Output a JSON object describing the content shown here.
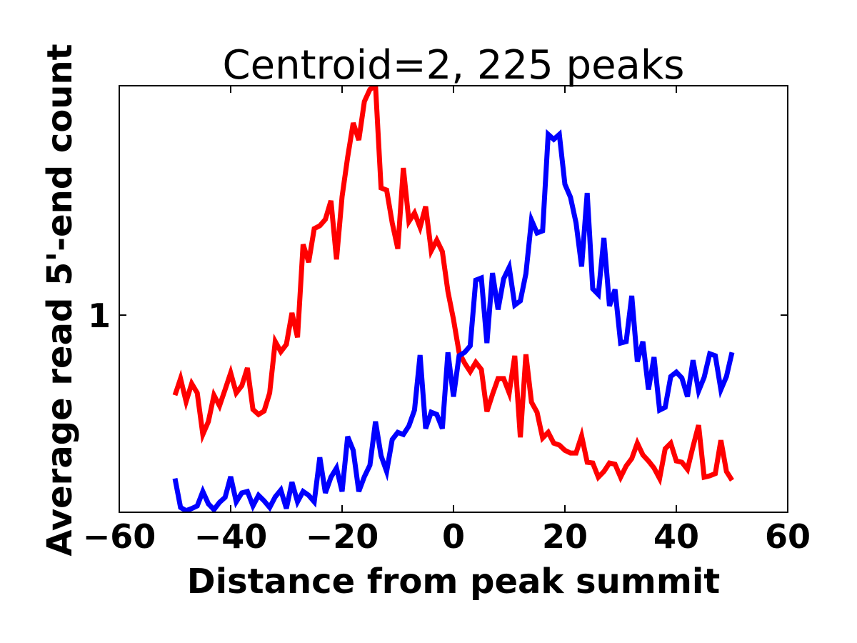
{
  "chart_data": {
    "type": "line",
    "title": "Centroid=2, 225 peaks",
    "xlabel": "Distance from peak summit",
    "ylabel": "Average read 5'-end count",
    "xlim": [
      -60,
      60
    ],
    "ylim": [
      0.345,
      3.45
    ],
    "yscale": "log",
    "xticks": [
      -60,
      -40,
      -20,
      0,
      20,
      40,
      60
    ],
    "xtick_labels": [
      "−60",
      "−40",
      "−20",
      "0",
      "20",
      "40",
      "60"
    ],
    "yticks": [
      1
    ],
    "ytick_labels": [
      "1"
    ],
    "grid": false,
    "x_start": -50,
    "x_step": 1,
    "series": [
      {
        "color": "#ff0000",
        "values": [
          0.649,
          0.71,
          0.627,
          0.691,
          0.657,
          0.525,
          0.563,
          0.649,
          0.613,
          0.669,
          0.732,
          0.657,
          0.683,
          0.752,
          0.601,
          0.585,
          0.596,
          0.657,
          0.867,
          0.821,
          0.854,
          1.012,
          0.887,
          1.465,
          1.33,
          1.595,
          1.62,
          1.677,
          1.854,
          1.351,
          1.897,
          2.346,
          2.822,
          2.573,
          3.168,
          3.383,
          3.45,
          1.987,
          1.964,
          1.645,
          1.431,
          2.213,
          1.657,
          1.736,
          1.607,
          1.798,
          1.415,
          1.499,
          1.409,
          1.136,
          0.977,
          0.818,
          0.772,
          0.737,
          0.775,
          0.746,
          0.594,
          0.652,
          0.71,
          0.71,
          0.657,
          0.803,
          0.517,
          0.809,
          0.625,
          0.592,
          0.515,
          0.531,
          0.501,
          0.496,
          0.482,
          0.475,
          0.475,
          0.521,
          0.452,
          0.45,
          0.417,
          0.43,
          0.45,
          0.447,
          0.417,
          0.443,
          0.461,
          0.501,
          0.47,
          0.455,
          0.438,
          0.414,
          0.486,
          0.501,
          0.455,
          0.452,
          0.435,
          0.492,
          0.552,
          0.417,
          0.42,
          0.425,
          0.509,
          0.43,
          0.41
        ]
      },
      {
        "color": "#0000ff",
        "values": [
          0.414,
          0.354,
          0.348,
          0.352,
          0.357,
          0.386,
          0.361,
          0.35,
          0.364,
          0.374,
          0.418,
          0.365,
          0.383,
          0.386,
          0.357,
          0.378,
          0.367,
          0.354,
          0.375,
          0.389,
          0.352,
          0.406,
          0.365,
          0.386,
          0.378,
          0.365,
          0.464,
          0.383,
          0.417,
          0.438,
          0.386,
          0.519,
          0.482,
          0.386,
          0.418,
          0.445,
          0.563,
          0.468,
          0.43,
          0.511,
          0.531,
          0.525,
          0.55,
          0.599,
          0.806,
          0.542,
          0.592,
          0.585,
          0.542,
          0.818,
          0.644,
          0.803,
          0.818,
          0.847,
          1.208,
          1.222,
          0.86,
          1.255,
          1.031,
          1.217,
          1.295,
          1.056,
          1.08,
          1.251,
          1.67,
          1.558,
          1.576,
          2.653,
          2.582,
          2.653,
          2.026,
          1.89,
          1.645,
          1.3,
          1.934,
          1.153,
          1.118,
          1.517,
          1.051,
          1.149,
          0.86,
          0.867,
          1.11,
          0.778,
          0.867,
          0.669,
          0.797,
          0.599,
          0.608,
          0.718,
          0.735,
          0.712,
          0.644,
          0.784,
          0.664,
          0.715,
          0.812,
          0.803,
          0.669,
          0.718,
          0.818
        ]
      }
    ]
  }
}
